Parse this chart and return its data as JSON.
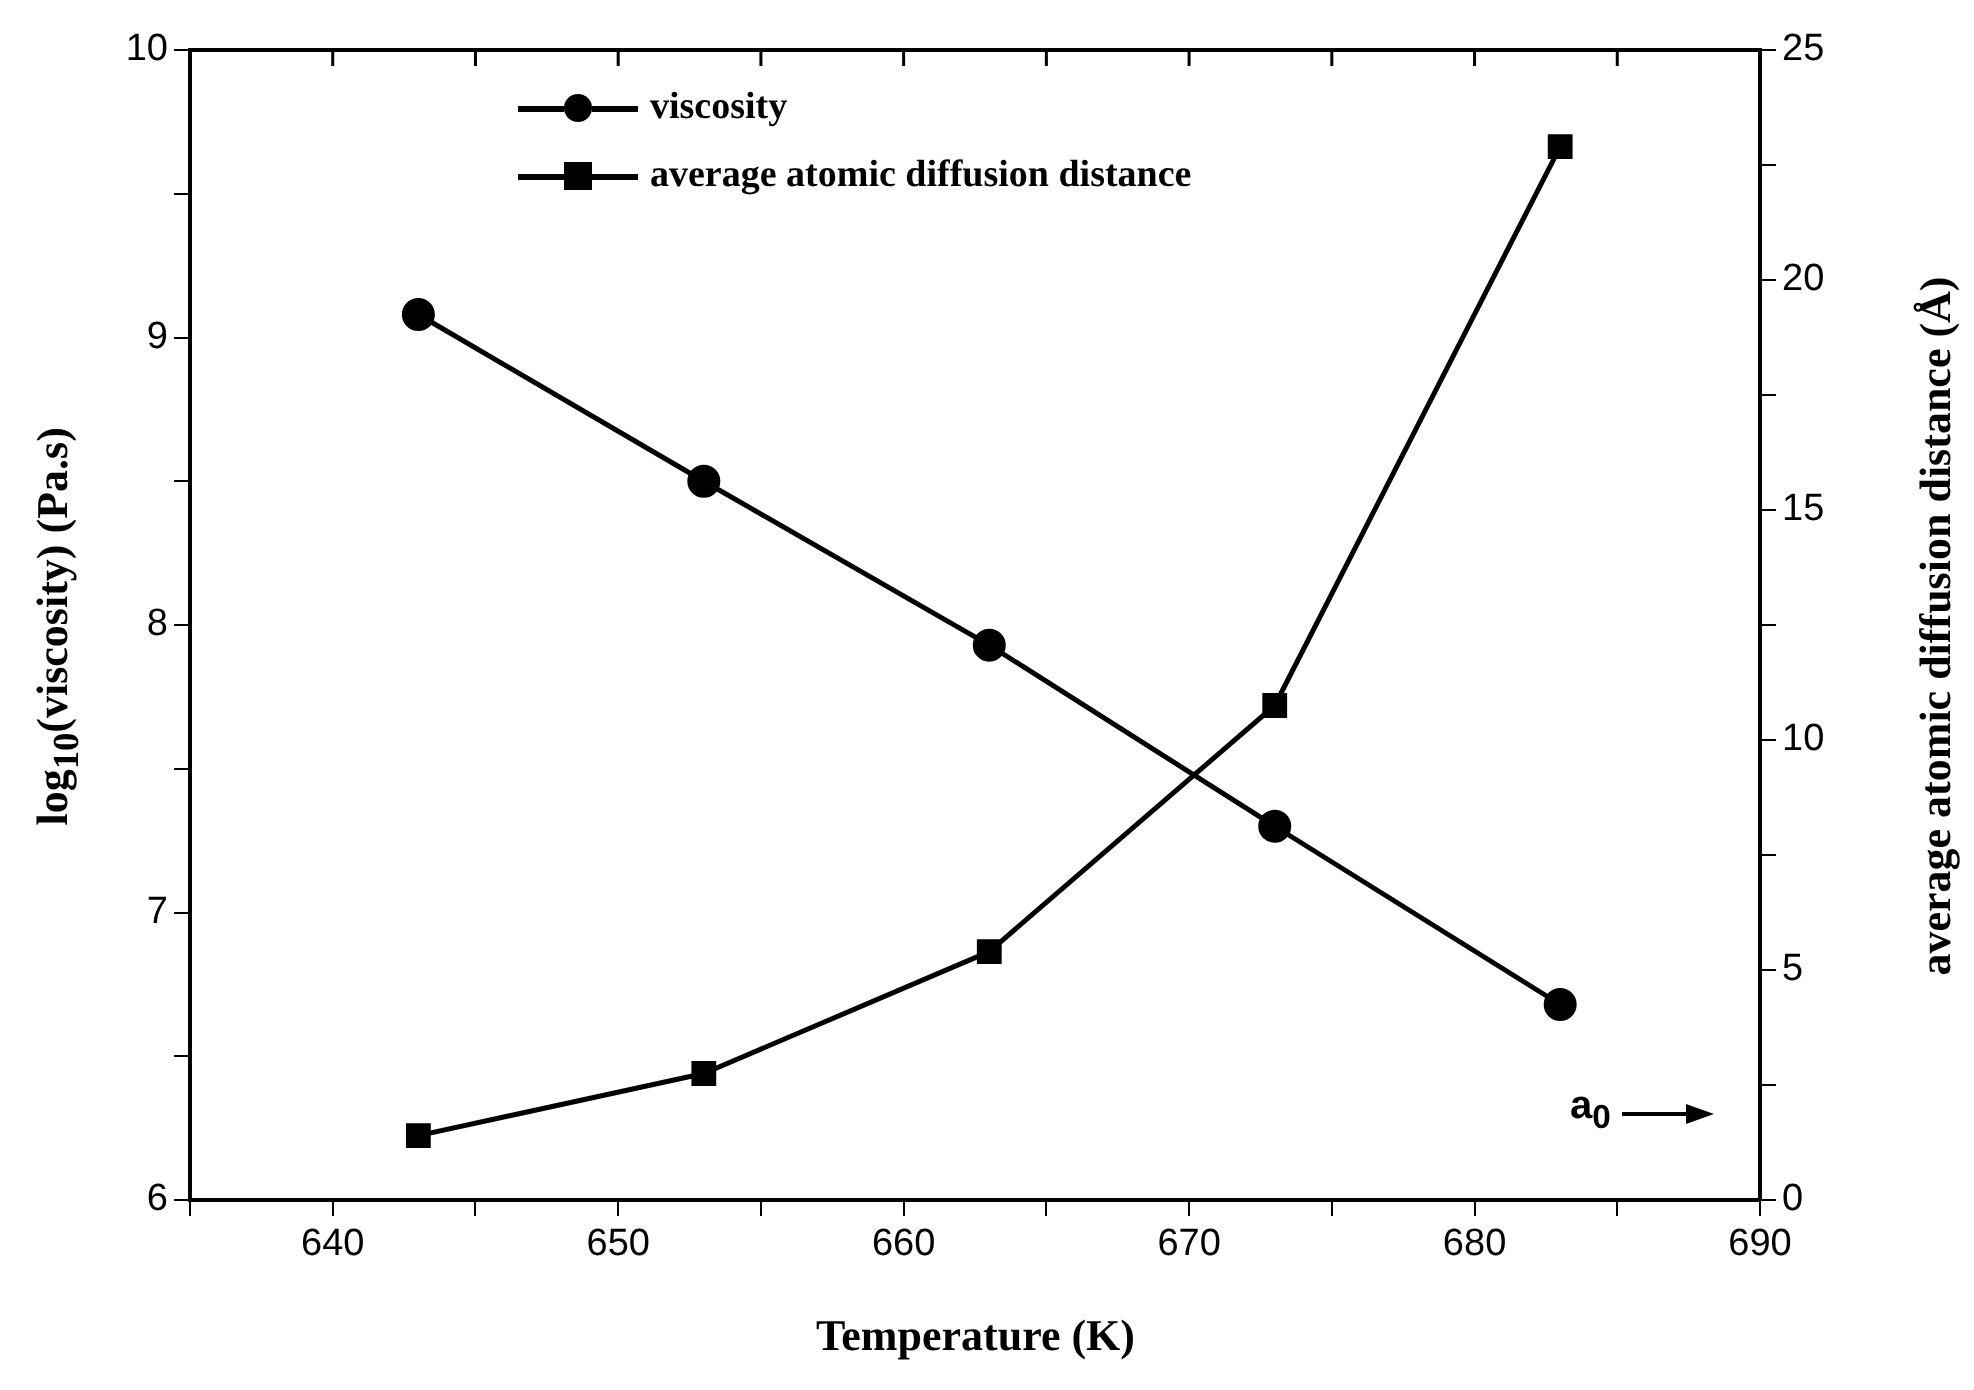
{
  "chart_data": {
    "type": "line",
    "xlabel": "Temperature (K)",
    "ylabel": "log$_{10}$(viscosity) (Pa.s)",
    "y2label": "average atomic diffusion distance (Å)",
    "x": [
      643,
      653,
      663,
      673,
      683
    ],
    "series": [
      {
        "name": "viscosity",
        "color": "#000000",
        "marker": "circle",
        "values": [
          9.08,
          8.5,
          7.93,
          7.3,
          6.68
        ]
      },
      {
        "name": "average atomic diffusion distance",
        "color": "#000000",
        "marker": "square",
        "axis": "y2",
        "values": [
          1.4,
          2.75,
          5.4,
          10.75,
          22.9
        ]
      }
    ],
    "xlim": [
      635,
      690
    ],
    "xticks": [
      {
        "value": 635,
        "label": null
      },
      640,
      {
        "value": 645,
        "label": null
      },
      650,
      {
        "value": 655,
        "label": null
      },
      660,
      {
        "value": 665,
        "label": null
      },
      670,
      {
        "value": 675,
        "label": null
      },
      680,
      {
        "value": 685,
        "label": null
      },
      690
    ],
    "ylim": [
      6,
      10
    ],
    "yticks": [
      6,
      {
        "value": 6.5,
        "label": null
      },
      7,
      {
        "value": 7.5,
        "label": null
      },
      8,
      {
        "value": 8.5,
        "label": null
      },
      9,
      {
        "value": 9.5,
        "label": null
      },
      10
    ],
    "y2lim": [
      0,
      25
    ],
    "y2ticks": [
      0,
      {
        "value": 2.5,
        "label": null
      },
      5,
      {
        "value": 7.5,
        "label": null
      },
      10,
      {
        "value": 12.5,
        "label": null
      },
      15,
      {
        "value": 17.5,
        "label": null
      },
      20,
      {
        "value": 22.5,
        "label": null
      },
      25
    ],
    "legend": "top",
    "grid": false,
    "line_style": "solid",
    "annotations": [
      "a$_{0}$"
    ]
  }
}
